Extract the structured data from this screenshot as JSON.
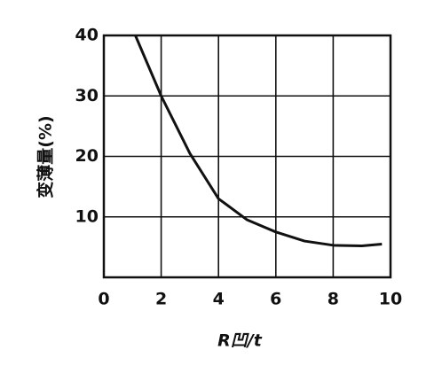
{
  "chart_data": {
    "type": "line",
    "x_label": "R凹/t",
    "y_label": "变薄量(%)",
    "x": [
      1.1,
      2,
      3,
      4,
      5,
      6,
      7,
      8,
      9,
      9.7
    ],
    "series": [
      {
        "color": "#111111",
        "values": [
          40,
          30,
          20.5,
          13,
          9.5,
          7.5,
          6,
          5.3,
          5.2,
          5.5
        ]
      }
    ],
    "xlim": [
      0,
      10
    ],
    "xticks": [
      0,
      2,
      4,
      6,
      8,
      10
    ],
    "ylim": [
      0,
      40
    ],
    "yticks": [
      10,
      20,
      30,
      40
    ],
    "grid": true
  }
}
